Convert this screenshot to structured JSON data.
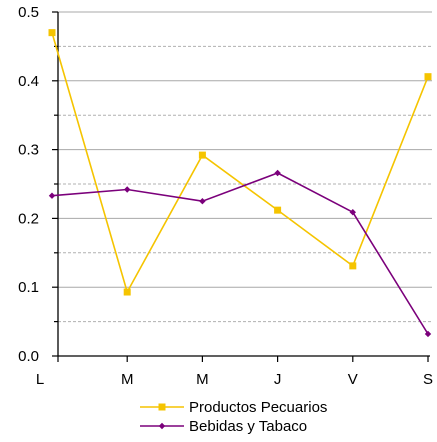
{
  "chart_data": {
    "type": "line",
    "title": "",
    "xlabel": "",
    "ylabel": "",
    "categories": [
      "L",
      "M",
      "M",
      "J",
      "V",
      "S"
    ],
    "ylim": [
      0.0,
      0.5
    ],
    "yticks": [
      "0.0",
      "0.1",
      "0.2",
      "0.3",
      "0.4",
      "0.5"
    ],
    "grid": "horizontal dashed at 0.05 steps, solid at 0.1 steps",
    "legend_position": "bottom",
    "series": [
      {
        "name": "Productos Pecuarios",
        "color": "#F5C400",
        "marker": "square",
        "values": [
          0.47,
          0.093,
          0.292,
          0.212,
          0.131,
          0.406
        ]
      },
      {
        "name": "Bebidas y Tabaco",
        "color": "#7B007B",
        "marker": "diamond",
        "values": [
          0.233,
          0.242,
          0.225,
          0.266,
          0.209,
          0.032
        ]
      }
    ]
  }
}
